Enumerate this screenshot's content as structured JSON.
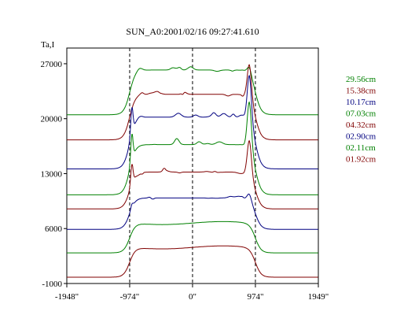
{
  "chart_data": {
    "type": "line",
    "title": "SUN_A0:2001/02/16 09:27:41.610",
    "ylabel": "Ta,I",
    "xlabel": "",
    "xlim": [
      -1948,
      1949
    ],
    "ylim": [
      -1000,
      29000
    ],
    "x_tick_labels": [
      "-1948\"",
      "-974\"",
      "0\"",
      "974\"",
      "1949\""
    ],
    "x_ticks": [
      -1948,
      -974,
      0,
      974,
      1949
    ],
    "y_ticks": [
      -1000,
      6000,
      13000,
      20000,
      27000
    ],
    "y_tick_labels": [
      "-1000",
      "6000",
      "13000",
      "20000",
      "27000"
    ],
    "reference_lines_x": [
      -974,
      0,
      974
    ],
    "series": [
      {
        "name": "29.56cm",
        "color": "#008000",
        "baseline": 20500,
        "plateau": 26200,
        "edge_peak": 27100,
        "peak_side": "right"
      },
      {
        "name": "15.38cm",
        "color": "#800000",
        "baseline": 17300,
        "plateau": 23100,
        "edge_peak": 27500,
        "peak_side": "right"
      },
      {
        "name": "10.17cm",
        "color": "#000080",
        "baseline": 13600,
        "plateau": 20200,
        "edge_peak": 26200,
        "peak_side": "both"
      },
      {
        "name": "07.03cm",
        "color": "#008000",
        "baseline": 10300,
        "plateau": 16700,
        "edge_peak": 22800,
        "peak_side": "both"
      },
      {
        "name": "04.32cm",
        "color": "#800000",
        "baseline": 8500,
        "plateau": 13200,
        "edge_peak": 17700,
        "peak_side": "both"
      },
      {
        "name": "02.90cm",
        "color": "#000080",
        "baseline": 5900,
        "plateau": 9900,
        "edge_peak": 10800,
        "peak_side": "both"
      },
      {
        "name": "02.11cm",
        "color": "#008000",
        "baseline": 2900,
        "plateau": 6700,
        "edge_peak": 6800,
        "peak_side": "none"
      },
      {
        "name": "01.92cm",
        "color": "#800000",
        "baseline": -200,
        "plateau": 3600,
        "edge_peak": 3700,
        "peak_side": "none"
      }
    ]
  }
}
